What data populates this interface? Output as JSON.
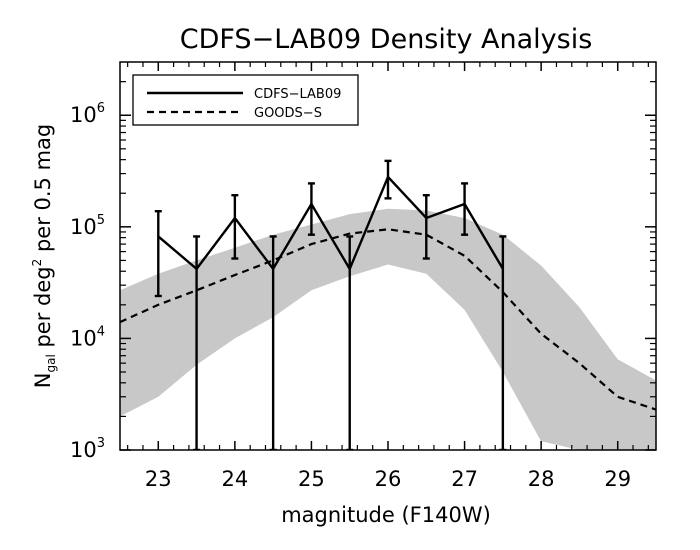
{
  "chart_data": {
    "type": "line",
    "title": "CDFS−LAB09 Density Analysis",
    "xlabel": "magnitude (F140W)",
    "ylabel": {
      "n": "N",
      "sub": "gal",
      "mid": " per deg",
      "sup": "2",
      "end": " per 0.5 mag"
    },
    "xlim": [
      22.5,
      29.5
    ],
    "ylim": [
      1000,
      3000000
    ],
    "yscale": "log",
    "x_ticks": [
      "23",
      "24",
      "25",
      "26",
      "27",
      "28",
      "29"
    ],
    "y_ticks": [
      {
        "base": "10",
        "exp": "3",
        "value": 1000
      },
      {
        "base": "10",
        "exp": "4",
        "value": 10000
      },
      {
        "base": "10",
        "exp": "5",
        "value": 100000
      },
      {
        "base": "10",
        "exp": "6",
        "value": 1000000
      }
    ],
    "legend": {
      "position": "top-left",
      "entries": [
        {
          "label": "CDFS−LAB09",
          "style": "solid"
        },
        {
          "label": "GOODS−S",
          "style": "dashed"
        }
      ]
    },
    "band": {
      "color": "#c8c8c8",
      "x": [
        22.5,
        23,
        23.5,
        24,
        24.5,
        25,
        25.5,
        26,
        26.5,
        27,
        27.5,
        28,
        28.5,
        29,
        29.5
      ],
      "upper": [
        27000,
        38000,
        50000,
        65000,
        85000,
        105000,
        130000,
        145000,
        140000,
        120000,
        85000,
        45000,
        19000,
        6500,
        4200
      ],
      "lower": [
        2000,
        3000,
        5800,
        10000,
        15500,
        27000,
        36000,
        46000,
        38000,
        18000,
        5000,
        1200,
        1000,
        1000,
        1000
      ]
    },
    "series": [
      {
        "name": "CDFS−LAB09",
        "style": "solid",
        "x": [
          23,
          23.5,
          24,
          24.5,
          25,
          25.5,
          26,
          26.5,
          27,
          27.5
        ],
        "y": [
          82000,
          42000,
          120000,
          42000,
          160000,
          42000,
          280000,
          120000,
          160000,
          42000
        ],
        "err_upper": [
          138000,
          82000,
          192000,
          82000,
          245000,
          82000,
          390000,
          192000,
          245000,
          82000
        ],
        "err_lower": [
          24000,
          1000,
          52000,
          1000,
          85000,
          1000,
          180000,
          52000,
          85000,
          1000
        ]
      },
      {
        "name": "GOODS−S",
        "style": "dashed",
        "x": [
          22.5,
          23,
          23.5,
          24,
          24.5,
          25,
          25.5,
          26,
          26.5,
          27,
          27.5,
          28,
          28.5,
          29,
          29.5
        ],
        "y": [
          14000,
          20000,
          27000,
          37000,
          50000,
          70000,
          87000,
          95000,
          85000,
          55000,
          26000,
          11000,
          6000,
          3000,
          2300
        ]
      }
    ]
  }
}
